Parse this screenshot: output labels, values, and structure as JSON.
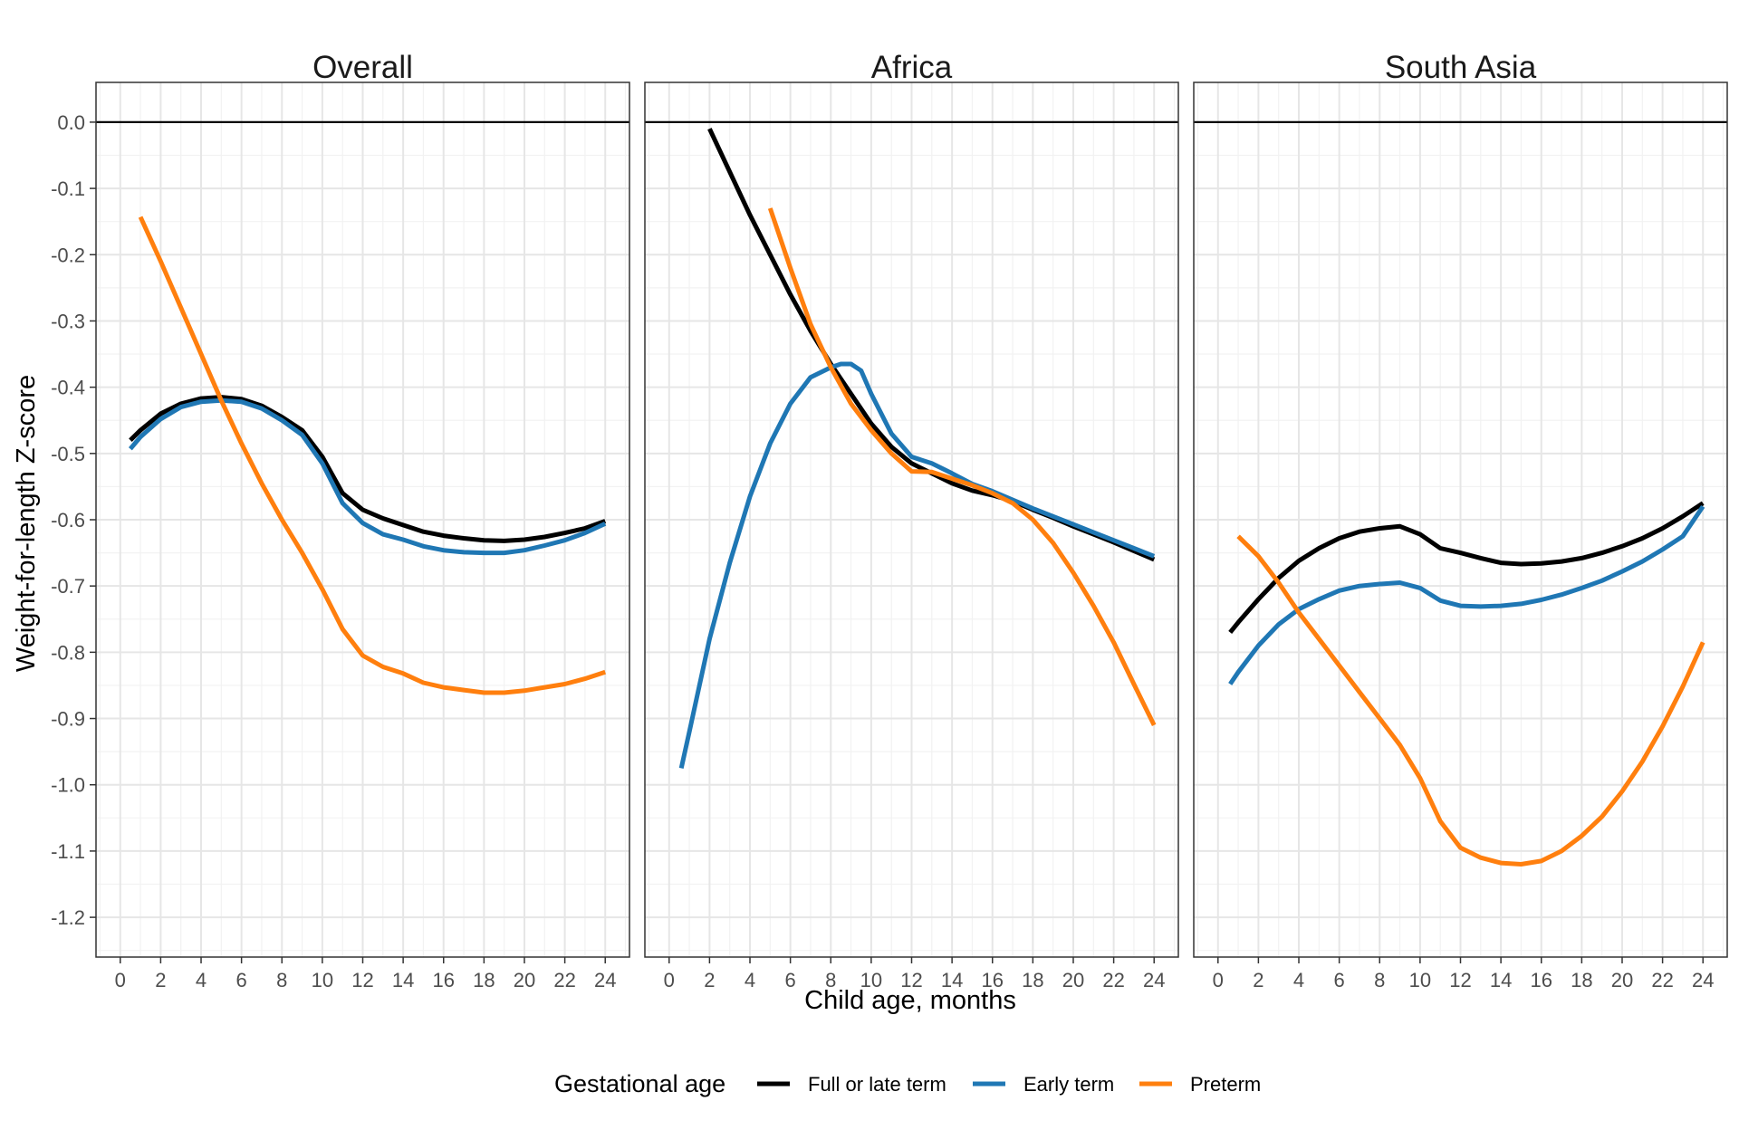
{
  "chart_data": {
    "type": "line",
    "xlabel": "Child age, months",
    "ylabel": "Weight-for-length Z-score",
    "x_ticks": [
      0,
      2,
      4,
      6,
      8,
      10,
      12,
      14,
      16,
      18,
      20,
      22,
      24
    ],
    "y_ticks": [
      0.0,
      -0.1,
      -0.2,
      -0.3,
      -0.4,
      -0.5,
      -0.6,
      -0.7,
      -0.8,
      -0.9,
      -1.0,
      -1.1,
      -1.2
    ],
    "y_tick_labels": [
      "0.0",
      "-0.1",
      "-0.2",
      "-0.3",
      "-0.4",
      "-0.5",
      "-0.6",
      "-0.7",
      "-0.8",
      "-0.9",
      "-1.0",
      "-1.1",
      "-1.2"
    ],
    "xlim": [
      -1.2,
      25.2
    ],
    "ylim": [
      -1.26,
      0.06
    ],
    "grid": true,
    "reference_line_y": 0.0,
    "legend": {
      "title": "Gestational age",
      "placement": "bottom",
      "entries": [
        {
          "name": "Full or late term",
          "color": "#000000"
        },
        {
          "name": "Early term",
          "color": "#1f77b4"
        },
        {
          "name": "Preterm",
          "color": "#ff7f0e"
        }
      ]
    },
    "panels": [
      {
        "title": "Overall",
        "series": [
          {
            "name": "Full or late term",
            "color": "#000000",
            "x": [
              0.5,
              1,
              2,
              3,
              4,
              5,
              6,
              7,
              8,
              9,
              10,
              11,
              12,
              13,
              14,
              15,
              16,
              17,
              18,
              19,
              20,
              21,
              22,
              23,
              24
            ],
            "y": [
              -0.48,
              -0.465,
              -0.44,
              -0.425,
              -0.417,
              -0.415,
              -0.418,
              -0.428,
              -0.445,
              -0.465,
              -0.505,
              -0.56,
              -0.585,
              -0.598,
              -0.608,
              -0.618,
              -0.624,
              -0.628,
              -0.631,
              -0.632,
              -0.63,
              -0.626,
              -0.62,
              -0.613,
              -0.602
            ]
          },
          {
            "name": "Early term",
            "color": "#1f77b4",
            "x": [
              0.5,
              1,
              2,
              3,
              4,
              5,
              6,
              7,
              8,
              9,
              10,
              11,
              12,
              13,
              14,
              15,
              16,
              17,
              18,
              19,
              20,
              21,
              22,
              23,
              24
            ],
            "y": [
              -0.493,
              -0.475,
              -0.448,
              -0.43,
              -0.422,
              -0.42,
              -0.422,
              -0.432,
              -0.45,
              -0.472,
              -0.515,
              -0.575,
              -0.605,
              -0.622,
              -0.63,
              -0.64,
              -0.646,
              -0.649,
              -0.65,
              -0.65,
              -0.646,
              -0.639,
              -0.631,
              -0.62,
              -0.606
            ]
          },
          {
            "name": "Preterm",
            "color": "#ff7f0e",
            "x": [
              1,
              2,
              3,
              4,
              5,
              6,
              7,
              8,
              9,
              10,
              11,
              12,
              13,
              14,
              15,
              16,
              17,
              18,
              19,
              20,
              21,
              22,
              23,
              24
            ],
            "y": [
              -0.143,
              -0.21,
              -0.28,
              -0.35,
              -0.42,
              -0.485,
              -0.545,
              -0.6,
              -0.65,
              -0.705,
              -0.765,
              -0.805,
              -0.822,
              -0.832,
              -0.846,
              -0.853,
              -0.857,
              -0.861,
              -0.861,
              -0.858,
              -0.853,
              -0.848,
              -0.84,
              -0.83
            ]
          }
        ]
      },
      {
        "title": "Africa",
        "series": [
          {
            "name": "Full or late term",
            "color": "#000000",
            "x": [
              2,
              3,
              4,
              5,
              6,
              7,
              8,
              9,
              10,
              11,
              12,
              13,
              14,
              15,
              16,
              17,
              18,
              19,
              20,
              21,
              22,
              23,
              24
            ],
            "y": [
              -0.01,
              -0.075,
              -0.14,
              -0.2,
              -0.26,
              -0.315,
              -0.365,
              -0.41,
              -0.455,
              -0.49,
              -0.515,
              -0.53,
              -0.545,
              -0.556,
              -0.563,
              -0.572,
              -0.585,
              -0.597,
              -0.61,
              -0.622,
              -0.634,
              -0.647,
              -0.66
            ]
          },
          {
            "name": "Early term",
            "color": "#1f77b4",
            "x": [
              0.6,
              1,
              2,
              3,
              4,
              5,
              6,
              7,
              8,
              8.5,
              9,
              9.5,
              10,
              11,
              12,
              13,
              14,
              15,
              16,
              17,
              18,
              19,
              20,
              21,
              22,
              23,
              24
            ],
            "y": [
              -0.975,
              -0.92,
              -0.78,
              -0.665,
              -0.565,
              -0.485,
              -0.425,
              -0.385,
              -0.37,
              -0.365,
              -0.365,
              -0.375,
              -0.41,
              -0.47,
              -0.505,
              -0.515,
              -0.53,
              -0.546,
              -0.557,
              -0.57,
              -0.583,
              -0.595,
              -0.607,
              -0.619,
              -0.631,
              -0.643,
              -0.655
            ]
          },
          {
            "name": "Preterm",
            "color": "#ff7f0e",
            "x": [
              5,
              6,
              7,
              8,
              9,
              10,
              11,
              12,
              13,
              14,
              15,
              16,
              17,
              18,
              19,
              20,
              21,
              22,
              23,
              24
            ],
            "y": [
              -0.13,
              -0.22,
              -0.305,
              -0.37,
              -0.425,
              -0.465,
              -0.5,
              -0.527,
              -0.528,
              -0.538,
              -0.548,
              -0.56,
              -0.575,
              -0.6,
              -0.635,
              -0.68,
              -0.73,
              -0.785,
              -0.848,
              -0.91
            ]
          }
        ]
      },
      {
        "title": "South Asia",
        "series": [
          {
            "name": "Full or late term",
            "color": "#000000",
            "x": [
              0.6,
              1,
              2,
              3,
              4,
              5,
              6,
              7,
              8,
              9,
              10,
              11,
              12,
              13,
              14,
              15,
              16,
              17,
              18,
              19,
              20,
              21,
              22,
              23,
              24
            ],
            "y": [
              -0.77,
              -0.755,
              -0.72,
              -0.688,
              -0.662,
              -0.643,
              -0.628,
              -0.618,
              -0.613,
              -0.61,
              -0.622,
              -0.643,
              -0.65,
              -0.658,
              -0.665,
              -0.667,
              -0.666,
              -0.663,
              -0.658,
              -0.65,
              -0.64,
              -0.628,
              -0.613,
              -0.595,
              -0.575
            ]
          },
          {
            "name": "Early term",
            "color": "#1f77b4",
            "x": [
              0.6,
              1,
              2,
              3,
              4,
              5,
              6,
              7,
              8,
              9,
              10,
              11,
              12,
              13,
              14,
              15,
              16,
              17,
              18,
              19,
              20,
              21,
              22,
              23,
              24
            ],
            "y": [
              -0.848,
              -0.83,
              -0.79,
              -0.758,
              -0.735,
              -0.72,
              -0.707,
              -0.7,
              -0.697,
              -0.695,
              -0.703,
              -0.722,
              -0.73,
              -0.731,
              -0.73,
              -0.727,
              -0.721,
              -0.713,
              -0.703,
              -0.692,
              -0.678,
              -0.663,
              -0.645,
              -0.625,
              -0.58
            ]
          },
          {
            "name": "Preterm",
            "color": "#ff7f0e",
            "x": [
              1,
              2,
              3,
              4,
              5,
              6,
              7,
              8,
              9,
              10,
              11,
              12,
              13,
              14,
              15,
              16,
              17,
              18,
              19,
              20,
              21,
              22,
              23,
              24
            ],
            "y": [
              -0.625,
              -0.655,
              -0.695,
              -0.74,
              -0.78,
              -0.82,
              -0.86,
              -0.9,
              -0.94,
              -0.99,
              -1.055,
              -1.095,
              -1.11,
              -1.118,
              -1.12,
              -1.115,
              -1.1,
              -1.077,
              -1.048,
              -1.01,
              -0.965,
              -0.912,
              -0.852,
              -0.785
            ]
          }
        ]
      }
    ]
  }
}
